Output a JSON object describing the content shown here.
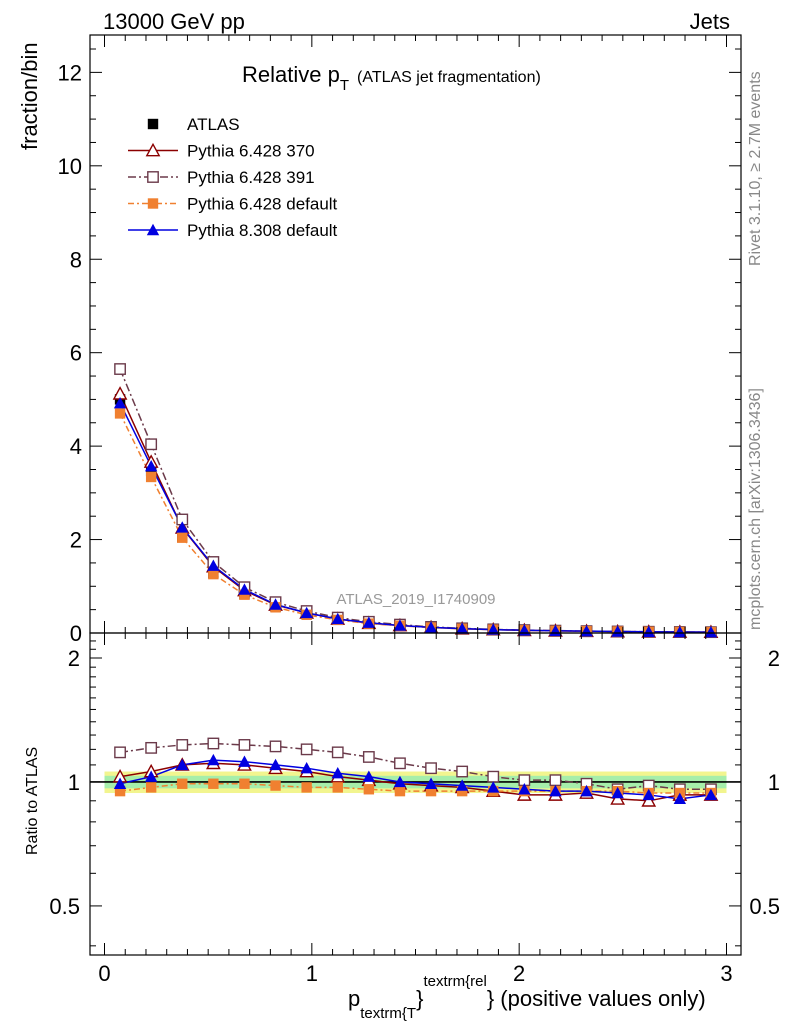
{
  "header": {
    "left": "13000 GeV pp",
    "right": "Jets"
  },
  "side_texts": {
    "rivet": "Rivet 3.1.10, ≥ 2.7M events",
    "source": "mcplots.cern.ch [arXiv:1306.3436]"
  },
  "chart_data": {
    "type": "line",
    "title": {
      "main": "Relative p",
      "subscript": "T",
      "suffix": "(ATLAS jet fragmentation)"
    },
    "watermark": "ATLAS_2019_I1740909",
    "legend_position": "top-left",
    "ylabel": "fraction/bin",
    "ratio_ylabel": "Ratio to ATLAS",
    "xlabel": {
      "p": "p",
      "sub": "textrm{T",
      "brace": "}",
      "sup": "textrm{rel",
      "rest": "} (positive values only)"
    },
    "xlim": [
      -0.07,
      3.07
    ],
    "ylim": [
      0,
      12.8
    ],
    "ratio_ylim": [
      0.38,
      2.3
    ],
    "x_ticks": [
      "0",
      "1",
      "2",
      "3"
    ],
    "y_ticks": [
      "0",
      "2",
      "4",
      "6",
      "8",
      "10",
      "12"
    ],
    "ratio_ticks": [
      "0.5",
      "1",
      "2"
    ],
    "grid": false,
    "x": [
      0.075,
      0.225,
      0.375,
      0.525,
      0.675,
      0.825,
      0.975,
      1.125,
      1.275,
      1.425,
      1.575,
      1.725,
      1.875,
      2.025,
      2.175,
      2.325,
      2.475,
      2.625,
      2.775,
      2.925
    ],
    "series": [
      {
        "name": "ATLAS",
        "color": "#000000",
        "marker": "filled-square",
        "values": [
          5.0,
          3.47,
          2.05,
          1.28,
          0.83,
          0.56,
          0.4,
          0.29,
          0.21,
          0.16,
          0.12,
          0.095,
          0.076,
          0.061,
          0.05,
          0.041,
          0.034,
          0.028,
          0.023,
          0.019
        ],
        "ratio": [
          1.0,
          1.0,
          1.0,
          1.0,
          1.0,
          1.0,
          1.0,
          1.0,
          1.0,
          1.0,
          1.0,
          1.0,
          1.0,
          1.0,
          1.0,
          1.0,
          1.0,
          1.0,
          1.0,
          1.0
        ]
      },
      {
        "name": "Pythia 6.428 370",
        "color": "#8b0000",
        "marker": "open-triangle",
        "dash": "",
        "values": [
          5.12,
          3.66,
          2.25,
          1.42,
          0.91,
          0.6,
          0.43,
          0.3,
          0.21,
          0.16,
          0.12,
          0.092,
          0.072,
          0.057,
          0.046,
          0.038,
          0.031,
          0.025,
          0.021,
          0.018
        ],
        "ratio": [
          1.03,
          1.06,
          1.1,
          1.11,
          1.1,
          1.08,
          1.06,
          1.03,
          1.01,
          0.99,
          0.98,
          0.97,
          0.95,
          0.93,
          0.93,
          0.94,
          0.91,
          0.9,
          0.93,
          0.93
        ]
      },
      {
        "name": "Pythia 6.428 391",
        "color": "#6b3a4a",
        "marker": "open-square",
        "dash": "8,3,2,3",
        "values": [
          5.65,
          4.04,
          2.43,
          1.52,
          0.98,
          0.66,
          0.47,
          0.33,
          0.24,
          0.18,
          0.13,
          0.1,
          0.078,
          0.062,
          0.051,
          0.04,
          0.033,
          0.027,
          0.022,
          0.018
        ],
        "ratio": [
          1.18,
          1.21,
          1.23,
          1.24,
          1.23,
          1.22,
          1.2,
          1.18,
          1.15,
          1.11,
          1.08,
          1.06,
          1.03,
          1.01,
          1.01,
          0.99,
          0.96,
          0.98,
          0.96,
          0.96
        ]
      },
      {
        "name": "Pythia 6.428 default",
        "color": "#f08030",
        "marker": "filled-square",
        "dash": "6,3,2,3",
        "values": [
          4.7,
          3.34,
          2.04,
          1.26,
          0.82,
          0.55,
          0.39,
          0.28,
          0.2,
          0.155,
          0.115,
          0.09,
          0.072,
          0.058,
          0.047,
          0.039,
          0.032,
          0.026,
          0.021,
          0.018
        ],
        "ratio": [
          0.95,
          0.97,
          0.99,
          0.99,
          0.99,
          0.98,
          0.97,
          0.97,
          0.96,
          0.95,
          0.95,
          0.95,
          0.95,
          0.95,
          0.95,
          0.95,
          0.95,
          0.94,
          0.94,
          0.94
        ]
      },
      {
        "name": "Pythia 8.308 default",
        "color": "#0000e0",
        "marker": "filled-triangle",
        "dash": "",
        "values": [
          4.92,
          3.57,
          2.26,
          1.44,
          0.93,
          0.61,
          0.43,
          0.3,
          0.22,
          0.16,
          0.12,
          0.093,
          0.073,
          0.058,
          0.047,
          0.039,
          0.032,
          0.026,
          0.021,
          0.018
        ],
        "ratio": [
          0.99,
          1.03,
          1.1,
          1.13,
          1.12,
          1.1,
          1.08,
          1.05,
          1.03,
          1.0,
          0.99,
          0.98,
          0.97,
          0.96,
          0.95,
          0.95,
          0.94,
          0.93,
          0.91,
          0.93
        ]
      }
    ]
  }
}
